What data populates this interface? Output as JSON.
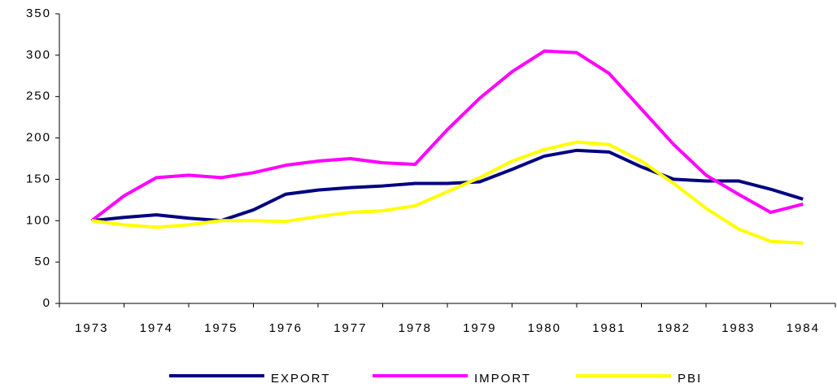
{
  "chart_data": {
    "type": "line",
    "categories": [
      "1973",
      null,
      "1974",
      null,
      "1975",
      null,
      "1976",
      null,
      "1977",
      null,
      "1978",
      null,
      "1979",
      null,
      "1980",
      null,
      "1981",
      null,
      "1982",
      null,
      "1983",
      null,
      "1984"
    ],
    "series": [
      {
        "name": "EXPORT",
        "color": "#000080",
        "values": [
          100,
          104,
          107,
          103,
          100,
          113,
          132,
          137,
          140,
          142,
          145,
          145,
          147,
          162,
          178,
          185,
          183,
          165,
          150,
          148,
          148,
          138,
          126
        ]
      },
      {
        "name": "IMPORT",
        "color": "#ff00ff",
        "values": [
          100,
          130,
          152,
          155,
          152,
          158,
          167,
          172,
          175,
          170,
          168,
          210,
          248,
          280,
          305,
          303,
          278,
          235,
          192,
          155,
          132,
          110,
          120
        ]
      },
      {
        "name": "PBI",
        "color": "#ffff00",
        "values": [
          100,
          95,
          92,
          95,
          100,
          100,
          99,
          105,
          110,
          112,
          118,
          135,
          152,
          172,
          186,
          195,
          192,
          172,
          145,
          115,
          90,
          75,
          73
        ]
      }
    ],
    "ylim": [
      0,
      350
    ],
    "yticks": [
      0,
      50,
      100,
      150,
      200,
      250,
      300,
      350
    ],
    "grid": false,
    "legend": "bottom"
  }
}
